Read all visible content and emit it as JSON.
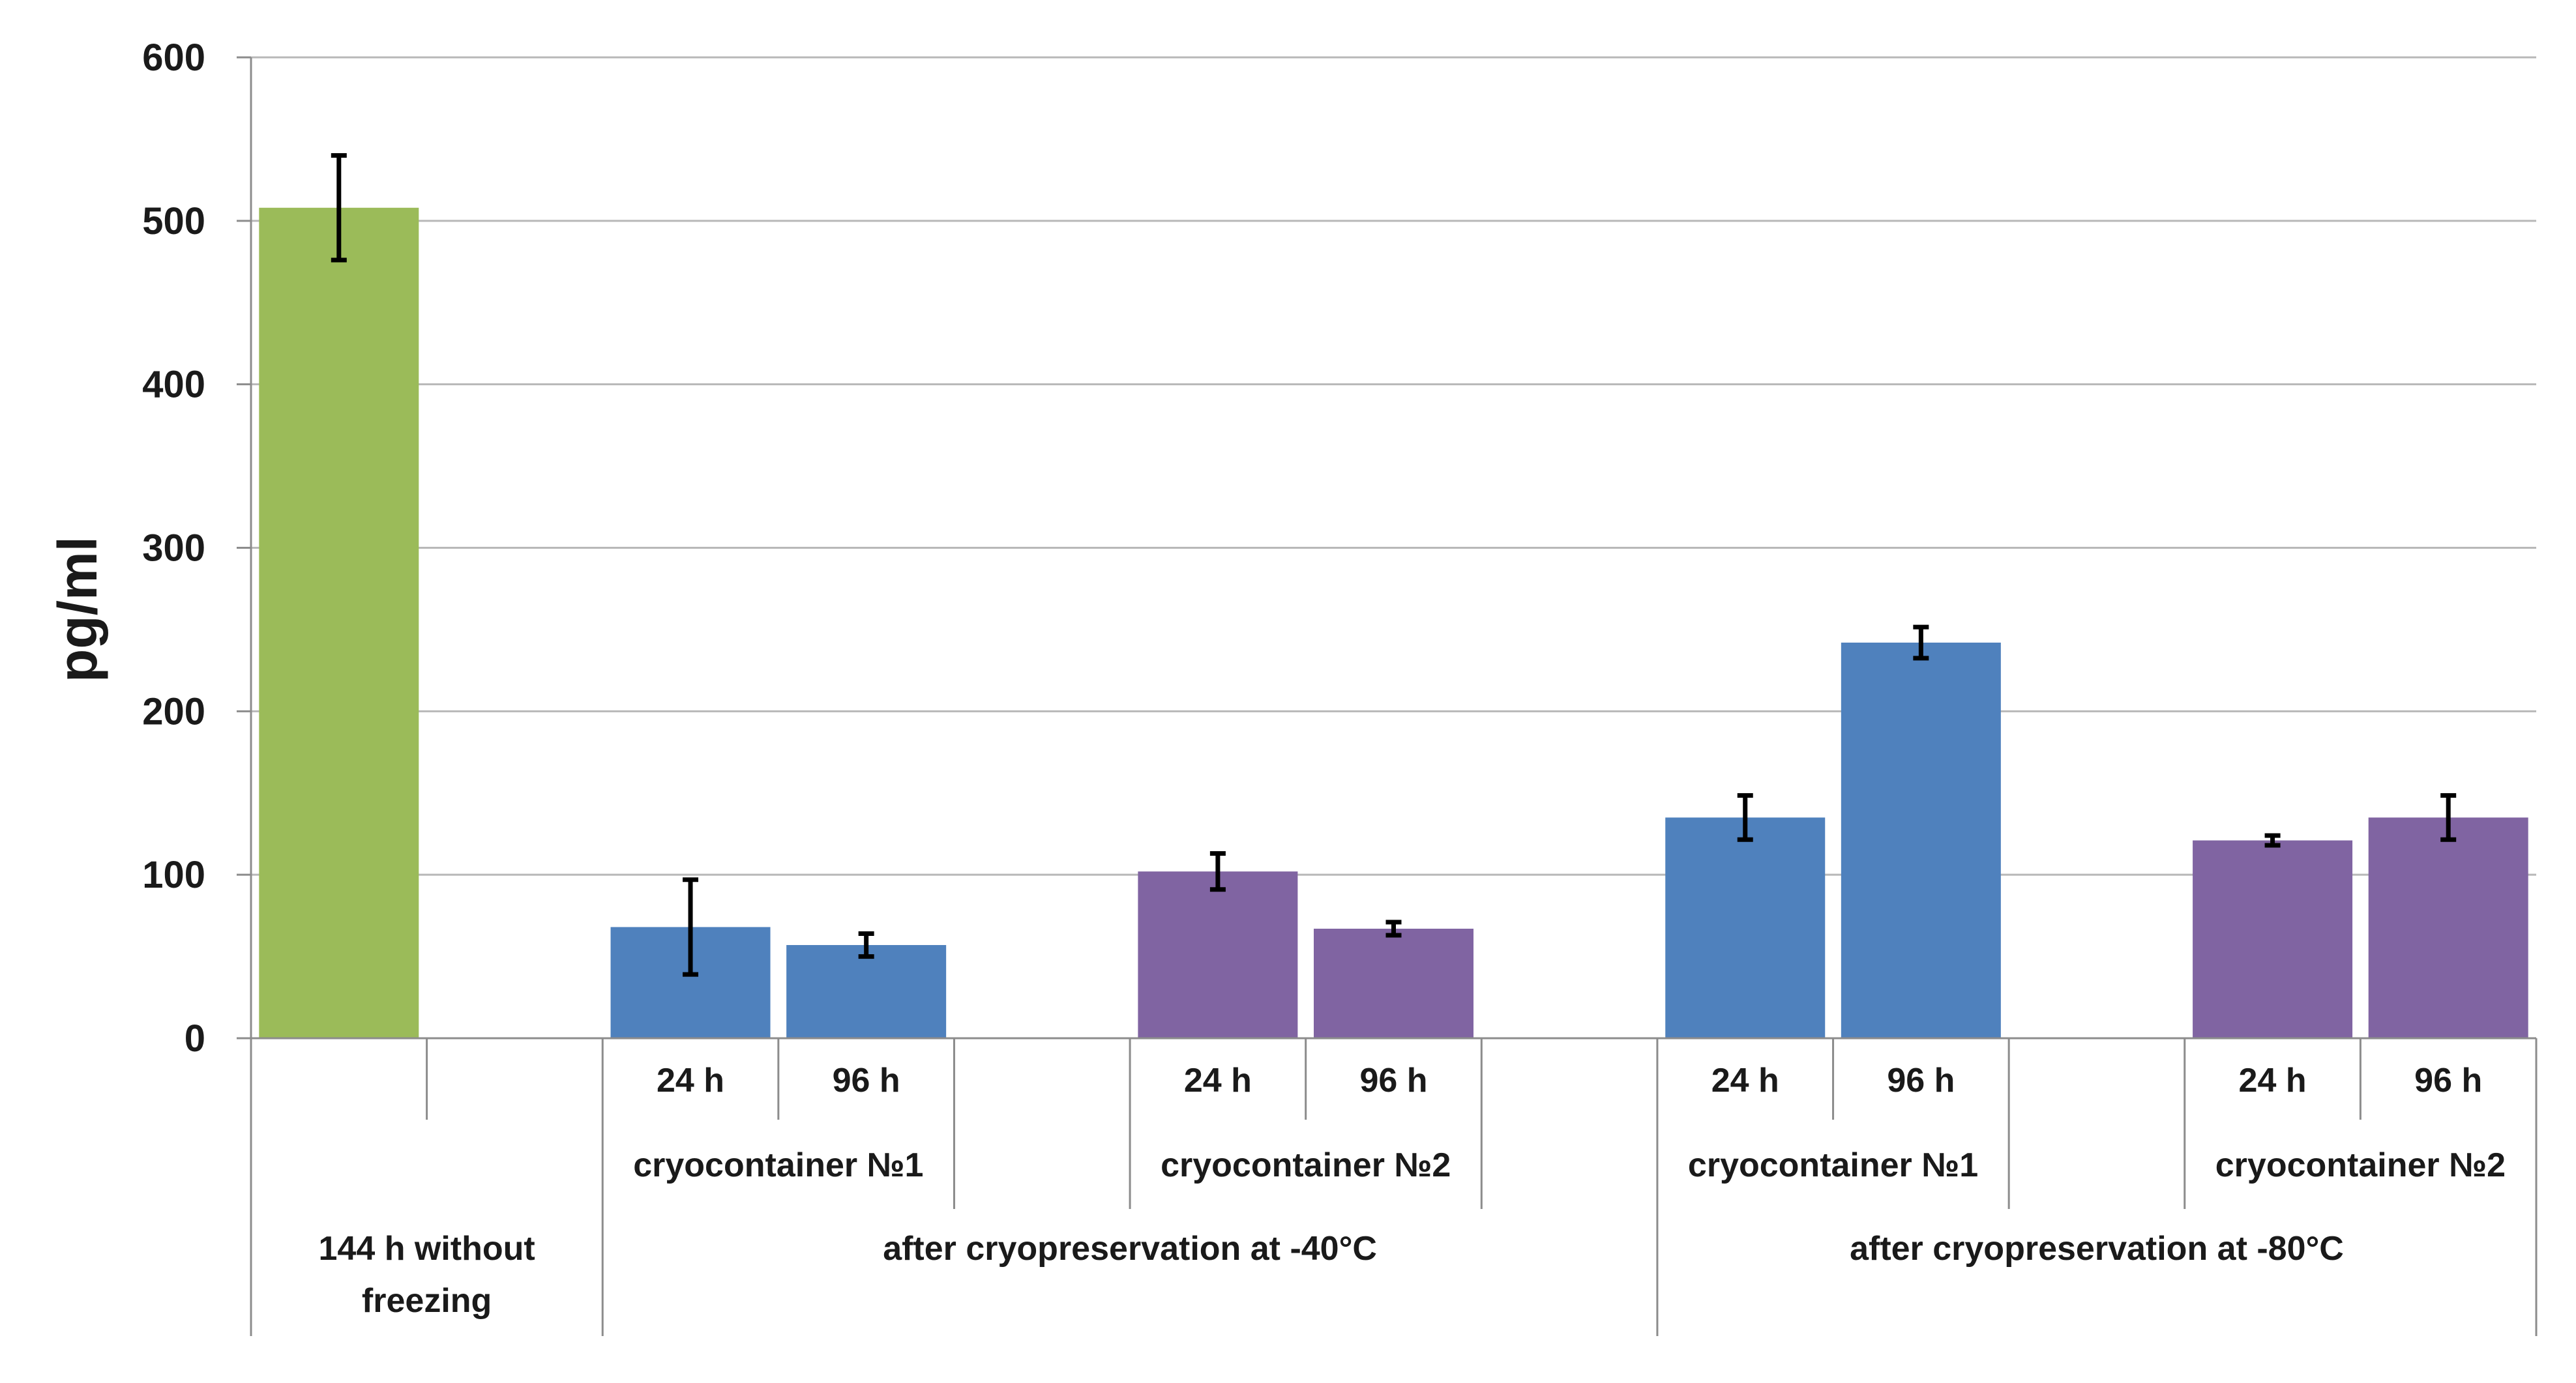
{
  "chart_data": {
    "type": "bar",
    "title": "",
    "xlabel": "",
    "ylabel": "pg/ml",
    "ylim": [
      0,
      600
    ],
    "yticks": [
      0,
      100,
      200,
      300,
      400,
      500,
      600
    ],
    "grid": true,
    "legend": "none",
    "colors": {
      "green": "#9bbb59",
      "blue": "#4f81bd",
      "purple": "#8064a2"
    },
    "bars": [
      {
        "slot": 0,
        "value": 508,
        "error": 32,
        "color": "green"
      },
      {
        "slot": 2,
        "value": 68,
        "error": 29,
        "color": "blue"
      },
      {
        "slot": 3,
        "value": 57,
        "error": 7,
        "color": "blue"
      },
      {
        "slot": 5,
        "value": 102,
        "error": 11,
        "color": "purple"
      },
      {
        "slot": 6,
        "value": 67,
        "error": 4,
        "color": "purple"
      },
      {
        "slot": 8,
        "value": 135,
        "error": 13.5,
        "color": "blue"
      },
      {
        "slot": 9,
        "value": 242,
        "error": 9.5,
        "color": "blue"
      },
      {
        "slot": 11,
        "value": 121,
        "error": 3,
        "color": "purple"
      },
      {
        "slot": 12,
        "value": 135,
        "error": 13.5,
        "color": "purple"
      }
    ],
    "level1_labels": [
      {
        "slot": 2,
        "text": "24 h"
      },
      {
        "slot": 3,
        "text": "96 h"
      },
      {
        "slot": 5,
        "text": "24 h"
      },
      {
        "slot": 6,
        "text": "96 h"
      },
      {
        "slot": 8,
        "text": "24 h"
      },
      {
        "slot": 9,
        "text": "96 h"
      },
      {
        "slot": 11,
        "text": "24 h"
      },
      {
        "slot": 12,
        "text": "96 h"
      }
    ],
    "level2_labels": [
      {
        "from": 2,
        "to": 4,
        "text": "cryocontainer  №1"
      },
      {
        "from": 5,
        "to": 7,
        "text": "cryocontainer  №2"
      },
      {
        "from": 8,
        "to": 10,
        "text": "cryocontainer  №1"
      },
      {
        "from": 11,
        "to": 13,
        "text": "cryocontainer  №2"
      }
    ],
    "level3_labels": [
      {
        "from": 0,
        "to": 2,
        "lines": [
          "144 h without",
          "freezing"
        ]
      },
      {
        "from": 2,
        "to": 8,
        "lines": [
          "after cryopreservation at -40°C"
        ]
      },
      {
        "from": 8,
        "to": 13,
        "lines": [
          "after cryopreservation at -80°C"
        ]
      }
    ]
  }
}
